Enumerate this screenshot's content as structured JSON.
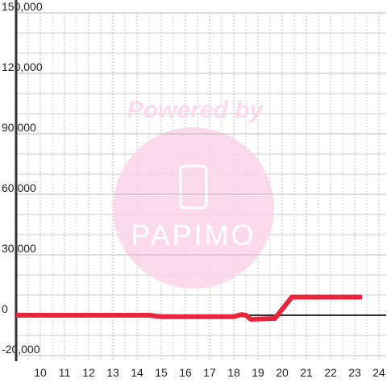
{
  "chart_data": {
    "type": "line",
    "x": [
      9,
      14.5,
      15,
      18,
      18.3,
      18.5,
      18.7,
      19.7,
      20,
      20.4,
      23.3
    ],
    "series": [
      {
        "color": "#e8253a",
        "values": [
          0,
          0,
          -700,
          -700,
          300,
          0,
          -2000,
          -1600,
          3000,
          9000,
          9000
        ]
      }
    ],
    "xlim": [
      9,
      24.3
    ],
    "xticks": [
      10,
      11,
      12,
      13,
      14,
      15,
      16,
      17,
      18,
      19,
      20,
      21,
      22,
      23,
      24
    ],
    "x_minor_ticks": [
      9.5,
      10.5,
      11.5,
      12.5,
      13.5,
      14.5,
      15.5,
      16.5,
      17.5,
      18.5,
      19.5,
      20.5,
      21.5,
      22.5,
      23.5
    ],
    "ylim": [
      -20000,
      150000
    ],
    "yticks": [
      {
        "value": -20000,
        "label": "-20,000"
      },
      0,
      {
        "value": 30000,
        "label": "30,000"
      },
      {
        "value": 60000,
        "label": "60,000"
      },
      {
        "value": 90000,
        "label": "90,000"
      },
      {
        "value": 120000,
        "label": "120,000"
      },
      {
        "value": 150000,
        "label": "150,000"
      }
    ],
    "y_minor_ticks": [
      -10000,
      10000,
      20000,
      40000,
      50000,
      70000,
      80000,
      100000,
      110000,
      130000,
      140000
    ],
    "grid": true,
    "watermark": {
      "line1": "Powered by",
      "line2": "PAPIMO"
    }
  }
}
